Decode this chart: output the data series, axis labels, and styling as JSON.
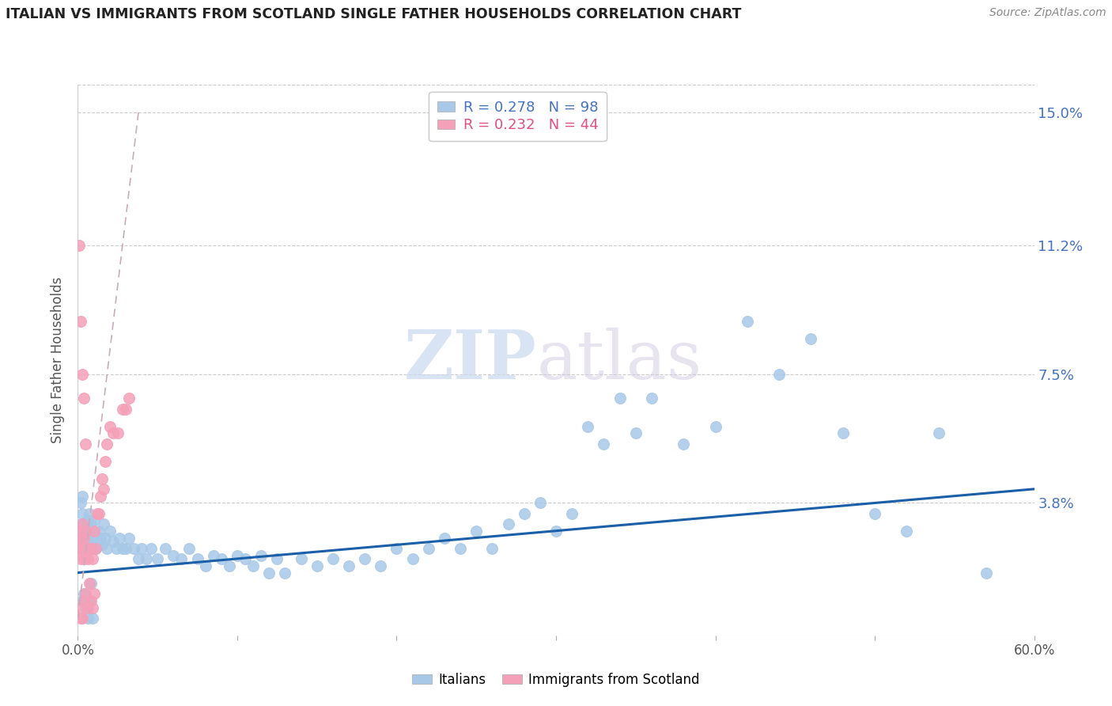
{
  "title": "ITALIAN VS IMMIGRANTS FROM SCOTLAND SINGLE FATHER HOUSEHOLDS CORRELATION CHART",
  "source": "Source: ZipAtlas.com",
  "ylabel": "Single Father Households",
  "ytick_vals": [
    0.0,
    0.038,
    0.075,
    0.112,
    0.15
  ],
  "ytick_labels": [
    "",
    "3.8%",
    "7.5%",
    "11.2%",
    "15.0%"
  ],
  "xlim": [
    0.0,
    0.6
  ],
  "ylim": [
    0.0,
    0.158
  ],
  "watermark_zip": "ZIP",
  "watermark_atlas": "atlas",
  "legend_blue_r": "R = 0.278",
  "legend_blue_n": "N = 98",
  "legend_pink_r": "R = 0.232",
  "legend_pink_n": "N = 44",
  "blue_color": "#a8c8e8",
  "pink_color": "#f4a0b8",
  "blue_line_color": "#1a5fa8",
  "pink_line_color": "#e06080",
  "blue_scatter_x": [
    0.001,
    0.002,
    0.002,
    0.003,
    0.003,
    0.004,
    0.004,
    0.005,
    0.005,
    0.006,
    0.006,
    0.007,
    0.007,
    0.008,
    0.008,
    0.009,
    0.009,
    0.01,
    0.01,
    0.011,
    0.012,
    0.013,
    0.014,
    0.015,
    0.016,
    0.017,
    0.018,
    0.02,
    0.022,
    0.024,
    0.026,
    0.028,
    0.03,
    0.032,
    0.035,
    0.038,
    0.04,
    0.043,
    0.046,
    0.05,
    0.055,
    0.06,
    0.065,
    0.07,
    0.075,
    0.08,
    0.085,
    0.09,
    0.095,
    0.1,
    0.105,
    0.11,
    0.115,
    0.12,
    0.125,
    0.13,
    0.14,
    0.15,
    0.16,
    0.17,
    0.18,
    0.19,
    0.2,
    0.21,
    0.22,
    0.23,
    0.24,
    0.25,
    0.26,
    0.27,
    0.28,
    0.29,
    0.3,
    0.31,
    0.32,
    0.33,
    0.34,
    0.35,
    0.36,
    0.38,
    0.4,
    0.42,
    0.44,
    0.46,
    0.48,
    0.5,
    0.52,
    0.54,
    0.57,
    0.002,
    0.003,
    0.004,
    0.005,
    0.006,
    0.007,
    0.008,
    0.009,
    0.003
  ],
  "blue_scatter_y": [
    0.028,
    0.032,
    0.025,
    0.03,
    0.035,
    0.028,
    0.032,
    0.025,
    0.03,
    0.033,
    0.028,
    0.035,
    0.03,
    0.025,
    0.032,
    0.027,
    0.03,
    0.028,
    0.033,
    0.025,
    0.027,
    0.03,
    0.028,
    0.026,
    0.032,
    0.028,
    0.025,
    0.03,
    0.027,
    0.025,
    0.028,
    0.025,
    0.025,
    0.028,
    0.025,
    0.022,
    0.025,
    0.022,
    0.025,
    0.022,
    0.025,
    0.023,
    0.022,
    0.025,
    0.022,
    0.02,
    0.023,
    0.022,
    0.02,
    0.023,
    0.022,
    0.02,
    0.023,
    0.018,
    0.022,
    0.018,
    0.022,
    0.02,
    0.022,
    0.02,
    0.022,
    0.02,
    0.025,
    0.022,
    0.025,
    0.028,
    0.025,
    0.03,
    0.025,
    0.032,
    0.035,
    0.038,
    0.03,
    0.035,
    0.06,
    0.055,
    0.068,
    0.058,
    0.068,
    0.055,
    0.06,
    0.09,
    0.075,
    0.085,
    0.058,
    0.035,
    0.03,
    0.058,
    0.018,
    0.038,
    0.01,
    0.012,
    0.008,
    0.005,
    0.01,
    0.015,
    0.005,
    0.04
  ],
  "pink_scatter_x": [
    0.001,
    0.001,
    0.002,
    0.002,
    0.002,
    0.003,
    0.003,
    0.003,
    0.004,
    0.004,
    0.004,
    0.005,
    0.005,
    0.005,
    0.006,
    0.006,
    0.007,
    0.007,
    0.008,
    0.008,
    0.009,
    0.009,
    0.01,
    0.01,
    0.011,
    0.012,
    0.013,
    0.014,
    0.015,
    0.016,
    0.017,
    0.018,
    0.02,
    0.022,
    0.025,
    0.028,
    0.03,
    0.032,
    0.001,
    0.002,
    0.003,
    0.004,
    0.005,
    0.002
  ],
  "pink_scatter_y": [
    0.025,
    0.03,
    0.022,
    0.028,
    0.008,
    0.025,
    0.032,
    0.005,
    0.028,
    0.022,
    0.01,
    0.025,
    0.03,
    0.012,
    0.022,
    0.008,
    0.025,
    0.015,
    0.025,
    0.01,
    0.022,
    0.008,
    0.03,
    0.012,
    0.025,
    0.035,
    0.035,
    0.04,
    0.045,
    0.042,
    0.05,
    0.055,
    0.06,
    0.058,
    0.058,
    0.065,
    0.065,
    0.068,
    0.112,
    0.09,
    0.075,
    0.068,
    0.055,
    0.005
  ],
  "blue_trend_x": [
    0.0,
    0.6
  ],
  "blue_trend_y": [
    0.018,
    0.042
  ],
  "pink_trend_x": [
    0.0,
    0.038
  ],
  "pink_trend_y": [
    0.005,
    0.15
  ]
}
